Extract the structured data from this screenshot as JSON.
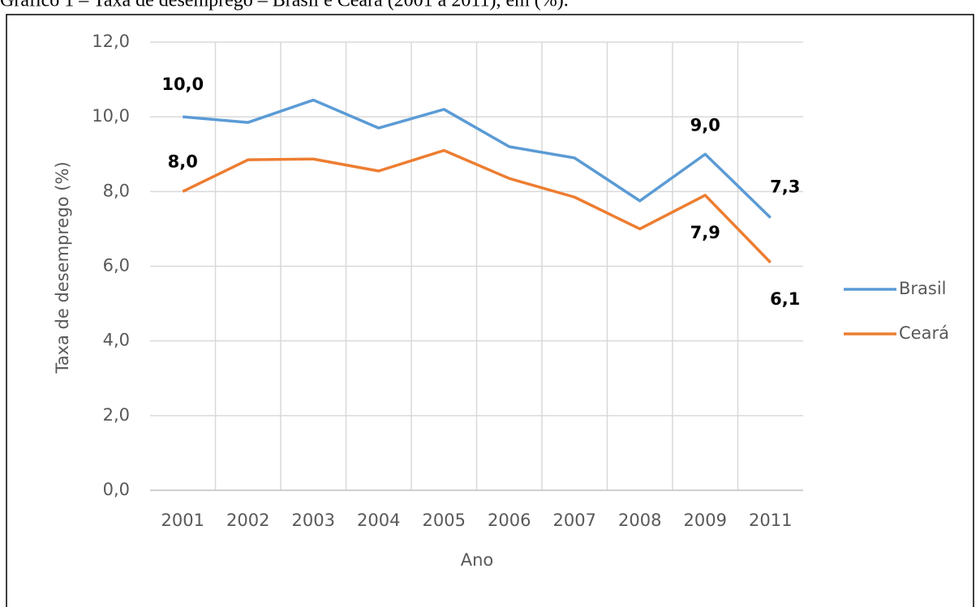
{
  "chart_data": {
    "type": "line",
    "title": "Gráfico 1 – Taxa de desemprego – Brasil e Ceará (2001 a 2011), em (%).",
    "x_label": "Ano",
    "y_label": "Taxa de desemprego (%)",
    "categories": [
      "2001",
      "2002",
      "2003",
      "2004",
      "2005",
      "2006",
      "2007",
      "2008",
      "2009",
      "2011"
    ],
    "series": [
      {
        "name": "Brasil",
        "color": "#5b9bd5",
        "values": [
          10.0,
          9.85,
          10.45,
          9.7,
          10.2,
          9.2,
          8.9,
          7.75,
          9.0,
          7.3
        ],
        "value_labels": [
          "10,0",
          null,
          null,
          null,
          null,
          null,
          null,
          null,
          "9,0",
          "7,3"
        ]
      },
      {
        "name": "Ceará",
        "color": "#ed7d31",
        "values": [
          8.0,
          8.85,
          8.87,
          8.55,
          9.1,
          8.35,
          7.85,
          7.0,
          7.9,
          6.1
        ],
        "value_labels": [
          "8,0",
          null,
          null,
          null,
          null,
          null,
          null,
          null,
          "7,9",
          "6,1"
        ]
      }
    ],
    "ylim": [
      0,
      12
    ],
    "yticks": [
      {
        "value": 0,
        "label": "0,0"
      },
      {
        "value": 2,
        "label": "2,0"
      },
      {
        "value": 4,
        "label": "4,0"
      },
      {
        "value": 6,
        "label": "6,0"
      },
      {
        "value": 8,
        "label": "8,0"
      },
      {
        "value": 10,
        "label": "10,0"
      },
      {
        "value": 12,
        "label": "12,0"
      }
    ],
    "grid": true,
    "legend": "right"
  }
}
